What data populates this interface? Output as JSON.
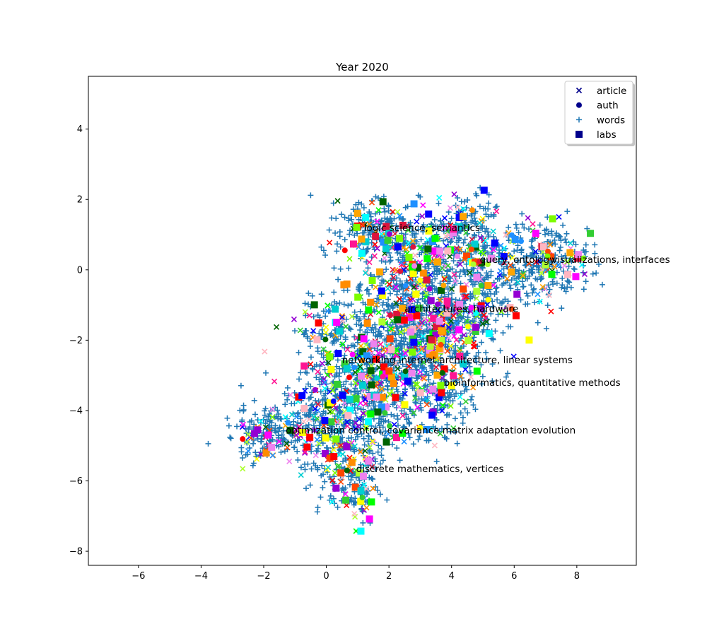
{
  "chart_data": {
    "type": "scatter",
    "title": "Year 2020",
    "xlabel": "",
    "ylabel": "",
    "xlim": [
      -7.6,
      9.9
    ],
    "ylim": [
      -8.4,
      5.5
    ],
    "xticks": [
      -6,
      -4,
      -2,
      0,
      2,
      4,
      6,
      8
    ],
    "yticks": [
      -8,
      -6,
      -4,
      -2,
      0,
      2,
      4
    ],
    "grid": false,
    "legend_position": "top-right",
    "legend": [
      {
        "label": "article",
        "marker": "x",
        "color": "#00008b"
      },
      {
        "label": "auth",
        "marker": "circle",
        "color": "#00008b"
      },
      {
        "label": "words",
        "marker": "plus",
        "color": "#1f77b4"
      },
      {
        "label": "labs",
        "marker": "square",
        "color": "#00008b"
      }
    ],
    "annotations": [
      {
        "text": "logic science, semantics",
        "x": 1.2,
        "y": 1.2
      },
      {
        "text": "query, ontology",
        "x": 4.9,
        "y": 0.3
      },
      {
        "text": "visualizations, interfaces",
        "x": 7.2,
        "y": 0.3
      },
      {
        "text": "architectures, hardware",
        "x": 2.5,
        "y": -1.1
      },
      {
        "text": "networking internet architecture, linear systems",
        "x": 0.5,
        "y": -2.55
      },
      {
        "text": "bioinformatics, quantitative methods",
        "x": 3.75,
        "y": -3.2
      },
      {
        "text": "optimization control, covariance matrix adaptation evolution",
        "x": -1.3,
        "y": -4.55
      },
      {
        "text": "discrete mathematics, vertices",
        "x": 0.95,
        "y": -5.65
      }
    ],
    "point_colors": [
      "#ff0000",
      "#00ff00",
      "#ffff00",
      "#ff00ff",
      "#00ffff",
      "#ff8c00",
      "#7cfc00",
      "#ff1493",
      "#32cd32",
      "#0000ff",
      "#ffb6c1",
      "#ee82ee",
      "#ffa500",
      "#006400",
      "#dc143c",
      "#adff2f",
      "#9400d3",
      "#00ced1",
      "#ff4500",
      "#1e90ff"
    ],
    "series": [
      {
        "name": "words",
        "marker": "plus",
        "color": "#1f77b4",
        "count": 2600
      },
      {
        "name": "article",
        "marker": "x",
        "count": 650
      },
      {
        "name": "labs",
        "marker": "square",
        "count": 240
      },
      {
        "name": "auth",
        "marker": "circle",
        "count": 50
      }
    ]
  }
}
